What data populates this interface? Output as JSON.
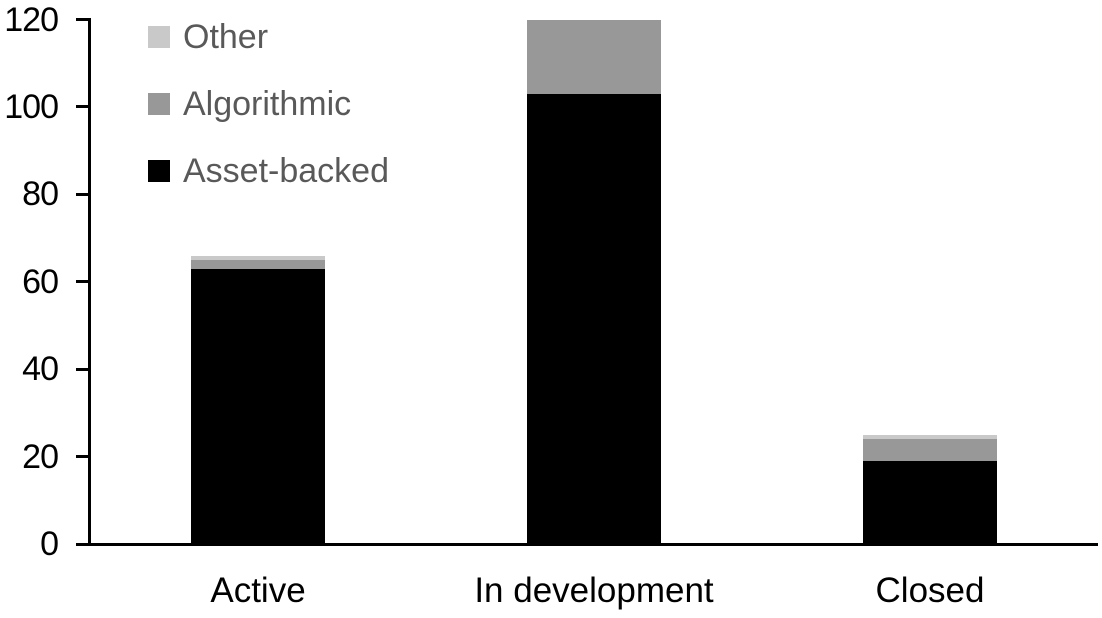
{
  "chart_data": {
    "type": "bar",
    "stacked": true,
    "title": "",
    "categories": [
      "Active",
      "In development",
      "Closed"
    ],
    "series": [
      {
        "name": "Asset-backed",
        "color": "#000000",
        "values": [
          63,
          103,
          19
        ]
      },
      {
        "name": "Algorithmic",
        "color": "#989898",
        "values": [
          2,
          17,
          5
        ]
      },
      {
        "name": "Other",
        "color": "#c9c9c9",
        "values": [
          1,
          0,
          1
        ]
      }
    ],
    "ylim": [
      0,
      120
    ],
    "yticks": [
      0,
      20,
      40,
      60,
      80,
      100,
      120
    ],
    "grid": false,
    "axis_color": "#000000",
    "tick_label_color": "#000000",
    "background": "#ffffff",
    "legend": {
      "position": "top-left",
      "text_color": "#595959",
      "entries": [
        {
          "label": "Other",
          "color": "#c9c9c9"
        },
        {
          "label": "Algorithmic",
          "color": "#989898"
        },
        {
          "label": "Asset-backed",
          "color": "#000000"
        }
      ]
    }
  }
}
